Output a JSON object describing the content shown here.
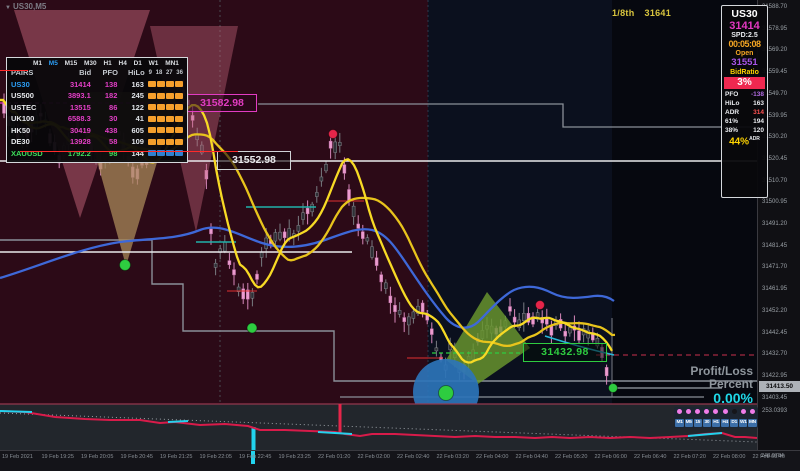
{
  "window": {
    "watermark": "US30,M5"
  },
  "top": {
    "eighth_label": "1/8th",
    "eighth_value": "31641"
  },
  "price_boxes": {
    "upper": "31582.98",
    "mid": "31552.98",
    "lower": "31432.98"
  },
  "current_price_tag": "31413.50",
  "profit_loss": {
    "title_line1": "Profit/Loss",
    "title_line2": "Percent",
    "value": "0.00%"
  },
  "left_panel": {
    "timeframes": [
      "M1",
      "M5",
      "M15",
      "M30",
      "H1",
      "H4",
      "D1",
      "W1",
      "MN1"
    ],
    "active_timeframe": "M5",
    "col_headers": {
      "pairs": "PAIRS",
      "bid": "Bid",
      "pfo": "PFO",
      "hilo": "HiLo",
      "depths": [
        "9",
        "18",
        "27",
        "36"
      ]
    },
    "rows": [
      {
        "pair": "US30",
        "bid": "31414",
        "pfo": "138",
        "hilo": "163",
        "pair_color": "#2b9df4",
        "bars": "orange"
      },
      {
        "pair": "US500",
        "bid": "3893.1",
        "pfo": "182",
        "hilo": "245",
        "bars": "orange"
      },
      {
        "pair": "USTEC",
        "bid": "13515",
        "pfo": "86",
        "hilo": "122",
        "bars": "orange"
      },
      {
        "pair": "UK100",
        "bid": "6588.3",
        "pfo": "30",
        "hilo": "41",
        "bars": "orange"
      },
      {
        "pair": "HK50",
        "bid": "30419",
        "pfo": "438",
        "hilo": "605",
        "bars": "orange"
      },
      {
        "pair": "DE30",
        "bid": "13928",
        "pfo": "58",
        "hilo": "109",
        "bars": "orange"
      },
      {
        "pair": "XAUUSD",
        "bid": "1792.2",
        "pfo": "98",
        "hilo": "144",
        "pair_color": "#3ddc5a",
        "value_color": "#3ddc5a",
        "bars": "blue"
      }
    ]
  },
  "right_panel": {
    "symbol": "US30",
    "price": "31414",
    "spread": "SPD:2.5",
    "countdown": "00:05:08",
    "open_label": "Open",
    "open_price": "31551",
    "bid_ratio_label": "BidRatio",
    "bid_ratio": "3%",
    "stats": [
      {
        "label": "PFO",
        "value": "-138",
        "value_color": "#b06ae0"
      },
      {
        "label": "HiLo",
        "value": "163",
        "value_color": "#e8eaee"
      },
      {
        "label": "ADR",
        "value": "314",
        "value_color": "#ff5252"
      },
      {
        "label": "61%",
        "value": "194",
        "value_color": "#e8eaee"
      },
      {
        "label": "38%",
        "value": "120",
        "value_color": "#e8eaee"
      }
    ],
    "adr_percent": "44%",
    "adr_sup": "ADR"
  },
  "price_axis": {
    "labels": [
      "31588.70",
      "31578.95",
      "31569.20",
      "31559.45",
      "31549.70",
      "31539.95",
      "31530.20",
      "31520.45",
      "31510.70",
      "31500.95",
      "31491.20",
      "31481.45",
      "31471.70",
      "31461.95",
      "31452.20",
      "31442.45",
      "31432.70",
      "31422.95",
      "31403.45"
    ],
    "indicator_label_upper": "253.0393",
    "indicator_label_lower": "248.0784"
  },
  "time_axis": {
    "labels": [
      "19 Feb 2021",
      "19 Feb 19:25",
      "19 Feb 20:05",
      "19 Feb 20:45",
      "19 Feb 21:25",
      "19 Feb 22:05",
      "19 Feb 22:45",
      "19 Feb 23:25",
      "22 Feb 01:20",
      "22 Feb 02:00",
      "22 Feb 02:40",
      "22 Feb 03:20",
      "22 Feb 04:00",
      "22 Feb 04:40",
      "22 Feb 05:20",
      "22 Feb 06:00",
      "22 Feb 06:40",
      "22 Feb 07:20",
      "22 Feb 08:00",
      "22 Feb 08:40"
    ]
  },
  "mini_toolbar": {
    "buttons": [
      "M1",
      "M5",
      "15",
      "30",
      "H1",
      "H4",
      "D1",
      "W1",
      "MN"
    ],
    "inactive_dot_index": 6
  },
  "colors": {
    "accent_magenta": "#e33fc7",
    "ma_yellow": "#f2cf1d",
    "ma_blue": "#3e68d8",
    "signal_green": "#2ecc40",
    "signal_red": "#e5254a",
    "cyan": "#22d3ee",
    "bars_orange": "#f59f2c",
    "bars_blue": "#2f80d0"
  },
  "chart_data": {
    "type": "candlestick",
    "symbol": "US30",
    "timeframe": "M5",
    "key_levels": [
      31582.98,
      31552.98,
      31432.98
    ],
    "current_price": 31413.5,
    "visible_time_range": [
      "19 Feb 2021 19:25",
      "22 Feb 08:40"
    ],
    "price_path": [
      [
        0,
        100
      ],
      [
        20,
        140
      ],
      [
        40,
        112
      ],
      [
        60,
        158
      ],
      [
        80,
        122
      ],
      [
        100,
        168
      ],
      [
        118,
        132
      ],
      [
        136,
        176
      ],
      [
        152,
        150
      ],
      [
        168,
        118
      ],
      [
        182,
        88
      ],
      [
        196,
        128
      ],
      [
        206,
        170
      ],
      [
        214,
        268
      ],
      [
        224,
        244
      ],
      [
        238,
        288
      ],
      [
        252,
        300
      ],
      [
        262,
        252
      ],
      [
        276,
        232
      ],
      [
        292,
        238
      ],
      [
        306,
        214
      ],
      [
        318,
        196
      ],
      [
        330,
        148
      ],
      [
        340,
        140
      ],
      [
        348,
        196
      ],
      [
        360,
        228
      ],
      [
        372,
        252
      ],
      [
        386,
        288
      ],
      [
        398,
        310
      ],
      [
        410,
        322
      ],
      [
        420,
        305
      ],
      [
        428,
        322
      ],
      [
        436,
        348
      ],
      [
        444,
        370
      ],
      [
        452,
        344
      ],
      [
        460,
        376
      ],
      [
        470,
        360
      ],
      [
        478,
        342
      ],
      [
        486,
        322
      ],
      [
        494,
        336
      ],
      [
        502,
        330
      ],
      [
        510,
        312
      ],
      [
        518,
        326
      ],
      [
        526,
        312
      ],
      [
        534,
        320
      ],
      [
        542,
        316
      ],
      [
        550,
        328
      ],
      [
        558,
        322
      ],
      [
        566,
        334
      ],
      [
        574,
        330
      ],
      [
        582,
        336
      ],
      [
        590,
        334
      ],
      [
        598,
        344
      ],
      [
        604,
        360
      ],
      [
        610,
        382
      ]
    ]
  }
}
